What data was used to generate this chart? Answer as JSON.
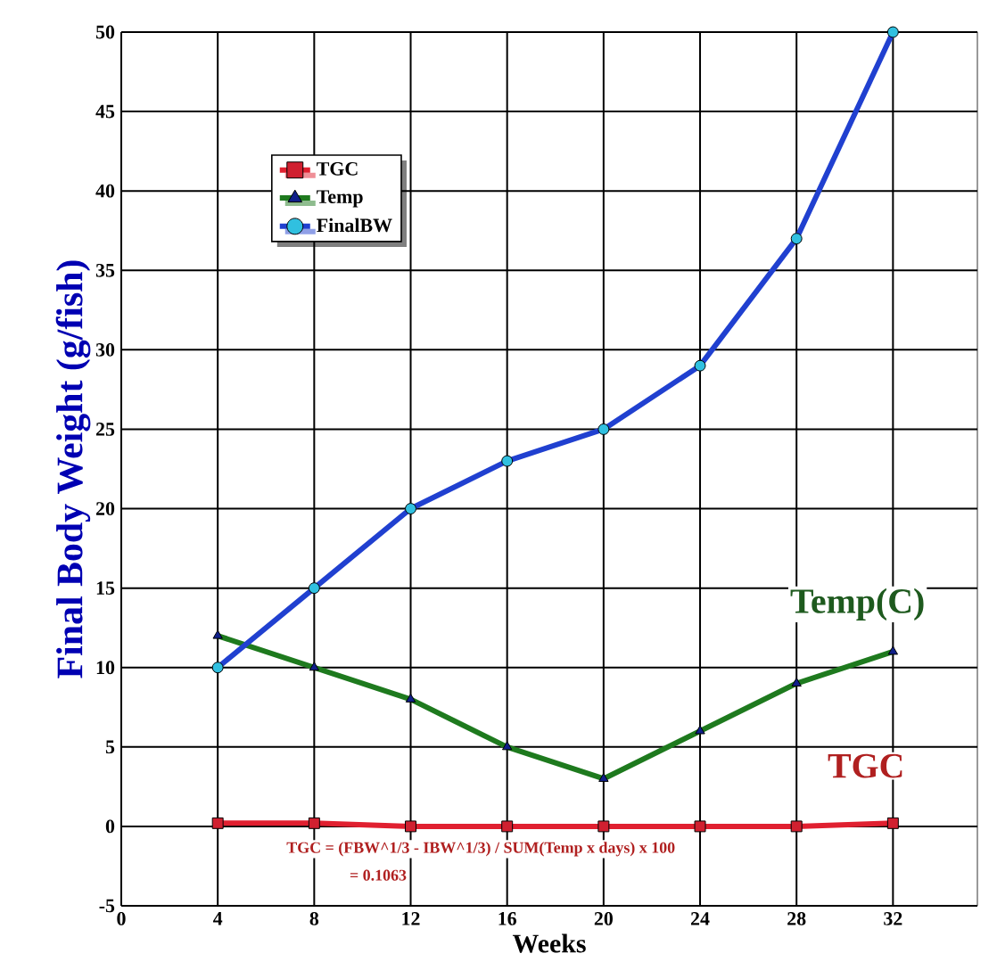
{
  "chart_data": {
    "type": "line",
    "xlabel": "Weeks",
    "ylabel": "Final Body Weight (g/fish)",
    "x": [
      4,
      8,
      12,
      16,
      20,
      24,
      28,
      32
    ],
    "series": [
      {
        "name": "TGC",
        "color": "#e02030",
        "marker": "square",
        "values": [
          0.2,
          0.2,
          0,
          0,
          0,
          0,
          0,
          0.2
        ]
      },
      {
        "name": "Temp",
        "color": "#1e7a1e",
        "marker": "triangle",
        "values": [
          12,
          10,
          8,
          5,
          3,
          6,
          9,
          11
        ]
      },
      {
        "name": "FinalBW",
        "color": "#2040d0",
        "marker": "circle",
        "values": [
          10,
          15,
          20,
          23,
          25,
          29,
          37,
          50
        ]
      }
    ],
    "xlim": [
      0,
      35.5
    ],
    "xticks": [
      0,
      4,
      8,
      12,
      16,
      20,
      24,
      28,
      32
    ],
    "ylim": [
      -5,
      50
    ],
    "yticks": [
      -5,
      0,
      5,
      10,
      15,
      20,
      25,
      30,
      35,
      40,
      45,
      50
    ],
    "grid": true,
    "legend": "top left",
    "annotations": [
      "Temp(C)",
      "TGC",
      "TGC = (FBW^1/3 - IBW^1/3) / SUM(Temp x days) x 100",
      "= 0.1063"
    ]
  }
}
